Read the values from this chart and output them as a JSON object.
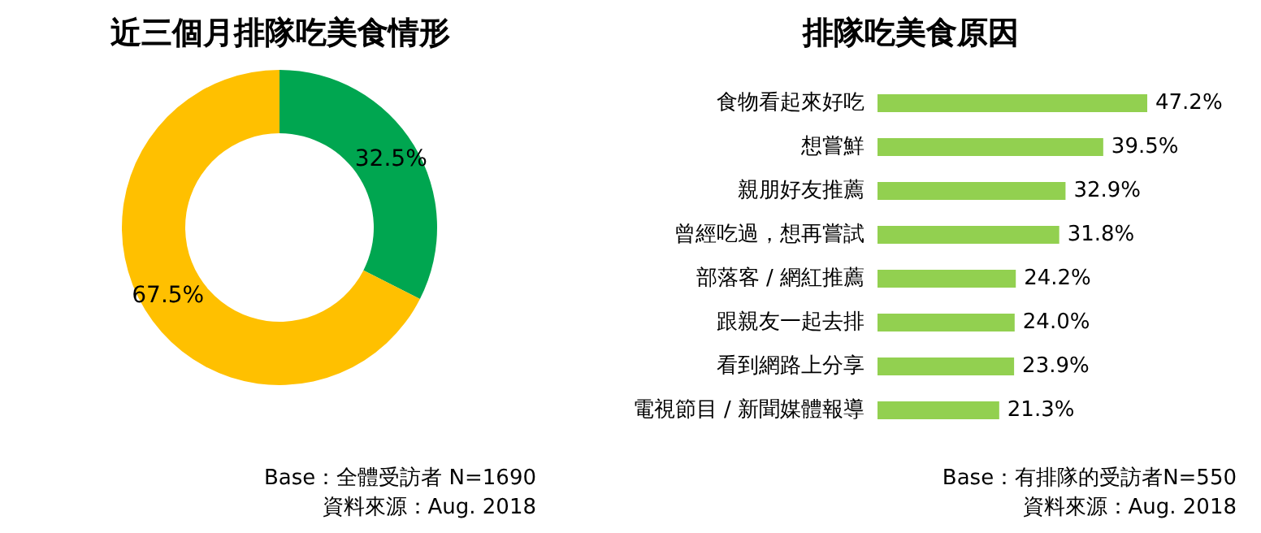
{
  "chart_data": [
    {
      "type": "donut",
      "title": "近三個月排隊吃美食情形",
      "categories": [
        null,
        null
      ],
      "values": [
        32.5,
        67.5
      ],
      "colors": [
        "#00a650",
        "#ffc000"
      ],
      "value_labels": [
        "32.5%",
        "67.5%"
      ],
      "annotations": [
        "Base：全體受訪者 N=1690",
        "資料來源：Aug. 2018"
      ]
    },
    {
      "type": "bar",
      "orientation": "horizontal",
      "title": "排隊吃美食原因",
      "categories": [
        "食物看起來好吃",
        "想嘗鮮",
        "親朋好友推薦",
        "曾經吃過，想再嘗試",
        "部落客 / 網紅推薦",
        "跟親友一起去排",
        "看到網路上分享",
        "電視節目 / 新聞媒體報導"
      ],
      "values": [
        47.2,
        39.5,
        32.9,
        31.8,
        24.2,
        24.0,
        23.9,
        21.3
      ],
      "color": "#92d050",
      "value_labels": [
        "47.2%",
        "39.5%",
        "32.9%",
        "31.8%",
        "24.2%",
        "24.0%",
        "23.9%",
        "21.3%"
      ],
      "annotations": [
        "Base：有排隊的受訪者N=550",
        "資料來源：Aug. 2018"
      ]
    }
  ]
}
